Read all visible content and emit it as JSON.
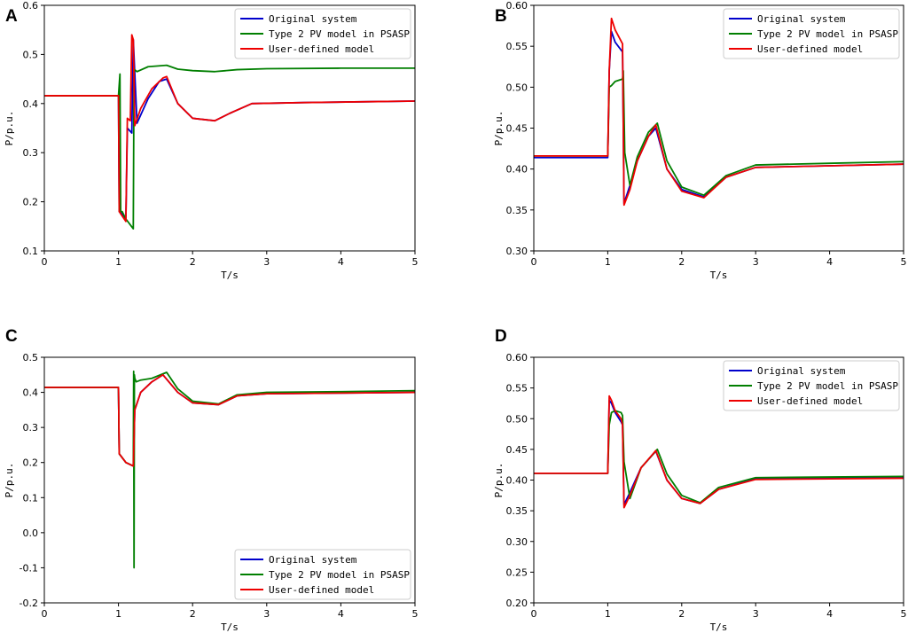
{
  "colors": {
    "original": "#0000cc",
    "psasp": "#007f00",
    "user": "#ee0000"
  },
  "chart_data": [
    {
      "panel": "A",
      "type": "line",
      "xlabel": "T/s",
      "ylabel": "P/p.u.",
      "xlim": [
        0,
        5
      ],
      "ylim": [
        0.1,
        0.6
      ],
      "xticks": [
        "0",
        "1",
        "2",
        "3",
        "4",
        "5"
      ],
      "yticks": [
        "0.1",
        "0.2",
        "0.3",
        "0.4",
        "0.5",
        "0.6"
      ],
      "legend_position": "top-right",
      "series": [
        {
          "name": "Original system",
          "color_key": "original",
          "x": [
            0,
            1.0,
            1.01,
            1.02,
            1.1,
            1.12,
            1.18,
            1.2,
            1.25,
            1.4,
            1.55,
            1.65,
            1.8,
            2.0,
            2.3,
            2.5,
            2.8,
            3.5,
            4.5,
            5.0
          ],
          "y": [
            0.416,
            0.416,
            0.18,
            0.18,
            0.165,
            0.35,
            0.34,
            0.53,
            0.36,
            0.41,
            0.445,
            0.45,
            0.4,
            0.37,
            0.365,
            0.38,
            0.4,
            0.402,
            0.404,
            0.405
          ]
        },
        {
          "name": "Type 2 PV model in PSASP",
          "color_key": "psasp",
          "x": [
            0,
            1.0,
            1.02,
            1.03,
            1.05,
            1.1,
            1.2,
            1.21,
            1.25,
            1.4,
            1.65,
            1.8,
            2.0,
            2.3,
            2.6,
            3.0,
            4.0,
            5.0
          ],
          "y": [
            0.416,
            0.416,
            0.46,
            0.18,
            0.18,
            0.165,
            0.145,
            0.47,
            0.465,
            0.475,
            0.478,
            0.47,
            0.467,
            0.465,
            0.469,
            0.471,
            0.472,
            0.472
          ]
        },
        {
          "name": "User-defined model",
          "color_key": "user",
          "x": [
            0,
            1.0,
            1.01,
            1.1,
            1.12,
            1.16,
            1.18,
            1.2,
            1.22,
            1.3,
            1.45,
            1.6,
            1.65,
            1.8,
            2.0,
            2.3,
            2.5,
            2.8,
            3.5,
            4.5,
            5.0
          ],
          "y": [
            0.416,
            0.416,
            0.18,
            0.16,
            0.37,
            0.365,
            0.54,
            0.53,
            0.355,
            0.39,
            0.43,
            0.452,
            0.455,
            0.4,
            0.37,
            0.365,
            0.38,
            0.4,
            0.402,
            0.404,
            0.405
          ]
        }
      ]
    },
    {
      "panel": "B",
      "type": "line",
      "xlabel": "T/s",
      "ylabel": "P/p.u.",
      "xlim": [
        0,
        5
      ],
      "ylim": [
        0.3,
        0.6
      ],
      "xticks": [
        "0",
        "1",
        "2",
        "3",
        "4",
        "5"
      ],
      "yticks": [
        "0.30",
        "0.35",
        "0.40",
        "0.45",
        "0.50",
        "0.55",
        "0.60"
      ],
      "legend_position": "top-right",
      "series": [
        {
          "name": "Original system",
          "color_key": "original",
          "x": [
            0,
            1.0,
            1.02,
            1.05,
            1.1,
            1.2,
            1.22,
            1.3,
            1.4,
            1.55,
            1.65,
            1.8,
            2.0,
            2.3,
            2.6,
            3.0,
            4.0,
            5.0
          ],
          "y": [
            0.414,
            0.414,
            0.52,
            0.568,
            0.555,
            0.543,
            0.358,
            0.38,
            0.41,
            0.44,
            0.45,
            0.4,
            0.375,
            0.366,
            0.39,
            0.402,
            0.404,
            0.406
          ]
        },
        {
          "name": "Type 2 PV model in PSASP",
          "color_key": "psasp",
          "x": [
            0,
            1.0,
            1.02,
            1.05,
            1.1,
            1.2,
            1.21,
            1.23,
            1.3,
            1.4,
            1.55,
            1.67,
            1.8,
            2.0,
            2.3,
            2.6,
            3.0,
            4.0,
            5.0
          ],
          "y": [
            0.416,
            0.416,
            0.5,
            0.502,
            0.507,
            0.51,
            0.52,
            0.42,
            0.38,
            0.415,
            0.445,
            0.456,
            0.41,
            0.378,
            0.368,
            0.392,
            0.405,
            0.407,
            0.409
          ]
        },
        {
          "name": "User-defined model",
          "color_key": "user",
          "x": [
            0,
            1.0,
            1.02,
            1.05,
            1.1,
            1.2,
            1.22,
            1.3,
            1.4,
            1.55,
            1.65,
            1.8,
            2.0,
            2.3,
            2.6,
            3.0,
            4.0,
            5.0
          ],
          "y": [
            0.416,
            0.416,
            0.52,
            0.584,
            0.57,
            0.553,
            0.356,
            0.375,
            0.41,
            0.44,
            0.454,
            0.4,
            0.373,
            0.365,
            0.39,
            0.402,
            0.404,
            0.406
          ]
        }
      ]
    },
    {
      "panel": "C",
      "type": "line",
      "xlabel": "T/s",
      "ylabel": "P/p.u.",
      "xlim": [
        0,
        5
      ],
      "ylim": [
        -0.2,
        0.5
      ],
      "xticks": [
        "0",
        "1",
        "2",
        "3",
        "4",
        "5"
      ],
      "yticks": [
        "-0.2",
        "-0.1",
        "0.0",
        "0.1",
        "0.2",
        "0.3",
        "0.4",
        "0.5"
      ],
      "legend_position": "bottom-right",
      "series": [
        {
          "name": "Original system",
          "color_key": "original",
          "x": [
            0,
            1.0,
            1.01,
            1.1,
            1.2,
            1.22,
            1.3,
            1.45,
            1.6,
            1.8,
            2.0,
            2.35,
            2.6,
            3.0,
            4.0,
            5.0
          ],
          "y": [
            0.414,
            0.414,
            0.225,
            0.2,
            0.19,
            0.35,
            0.4,
            0.43,
            0.45,
            0.4,
            0.37,
            0.365,
            0.39,
            0.396,
            0.398,
            0.4
          ]
        },
        {
          "name": "Type 2 PV model in PSASP",
          "color_key": "psasp",
          "x": [
            0,
            1.0,
            1.01,
            1.1,
            1.2,
            1.205,
            1.21,
            1.215,
            1.22,
            1.24,
            1.3,
            1.45,
            1.65,
            1.8,
            2.0,
            2.35,
            2.6,
            3.0,
            4.0,
            5.0
          ],
          "y": [
            0.414,
            0.414,
            0.225,
            0.2,
            0.19,
            0.46,
            -0.1,
            0.45,
            0.44,
            0.43,
            0.435,
            0.44,
            0.457,
            0.41,
            0.375,
            0.367,
            0.393,
            0.4,
            0.402,
            0.405
          ]
        },
        {
          "name": "User-defined model",
          "color_key": "user",
          "x": [
            0,
            1.0,
            1.01,
            1.1,
            1.2,
            1.22,
            1.3,
            1.45,
            1.6,
            1.8,
            2.0,
            2.35,
            2.6,
            3.0,
            4.0,
            5.0
          ],
          "y": [
            0.414,
            0.414,
            0.225,
            0.2,
            0.19,
            0.35,
            0.4,
            0.43,
            0.45,
            0.4,
            0.37,
            0.365,
            0.39,
            0.396,
            0.398,
            0.4
          ]
        }
      ]
    },
    {
      "panel": "D",
      "type": "line",
      "xlabel": "T/s",
      "ylabel": "P/p.u.",
      "xlim": [
        0,
        5
      ],
      "ylim": [
        0.2,
        0.6
      ],
      "xticks": [
        "0",
        "1",
        "2",
        "3",
        "4",
        "5"
      ],
      "yticks": [
        "0.20",
        "0.25",
        "0.30",
        "0.35",
        "0.40",
        "0.45",
        "0.50",
        "0.55",
        "0.60"
      ],
      "legend_position": "top-right",
      "series": [
        {
          "name": "Original system",
          "color_key": "original",
          "x": [
            0,
            1.0,
            1.02,
            1.05,
            1.1,
            1.18,
            1.2,
            1.22,
            1.3,
            1.45,
            1.65,
            1.8,
            2.0,
            2.25,
            2.5,
            3.0,
            4.0,
            5.0
          ],
          "y": [
            0.411,
            0.411,
            0.53,
            0.525,
            0.51,
            0.495,
            0.49,
            0.36,
            0.38,
            0.42,
            0.447,
            0.4,
            0.37,
            0.362,
            0.385,
            0.402,
            0.403,
            0.404
          ]
        },
        {
          "name": "Type 2 PV model in PSASP",
          "color_key": "psasp",
          "x": [
            0,
            1.0,
            1.02,
            1.05,
            1.1,
            1.18,
            1.2,
            1.22,
            1.3,
            1.45,
            1.67,
            1.8,
            2.0,
            2.25,
            2.5,
            3.0,
            4.0,
            5.0
          ],
          "y": [
            0.411,
            0.411,
            0.49,
            0.51,
            0.513,
            0.51,
            0.505,
            0.43,
            0.37,
            0.42,
            0.45,
            0.41,
            0.375,
            0.363,
            0.388,
            0.404,
            0.405,
            0.406
          ]
        },
        {
          "name": "User-defined model",
          "color_key": "user",
          "x": [
            0,
            1.0,
            1.02,
            1.05,
            1.1,
            1.18,
            1.2,
            1.22,
            1.3,
            1.45,
            1.65,
            1.8,
            2.0,
            2.25,
            2.5,
            3.0,
            4.0,
            5.0
          ],
          "y": [
            0.411,
            0.411,
            0.537,
            0.53,
            0.513,
            0.5,
            0.49,
            0.355,
            0.375,
            0.42,
            0.448,
            0.4,
            0.37,
            0.362,
            0.385,
            0.401,
            0.402,
            0.403
          ]
        }
      ]
    }
  ]
}
